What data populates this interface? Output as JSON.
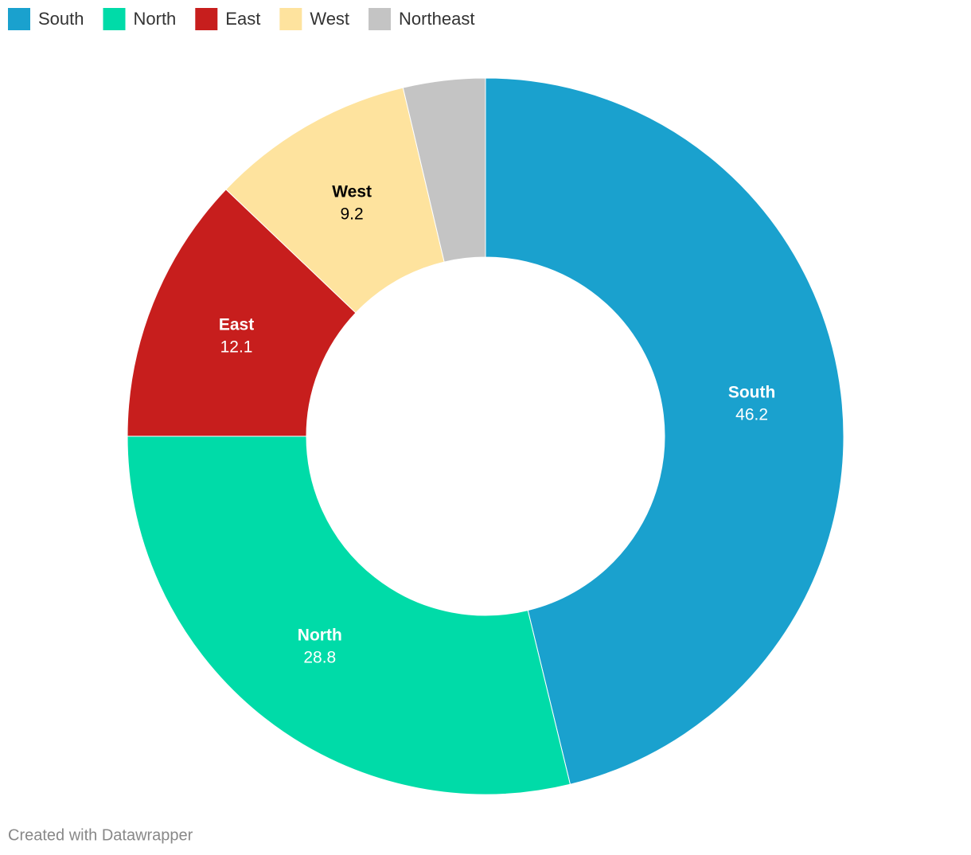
{
  "chart_data": {
    "type": "donut",
    "categories": [
      "South",
      "North",
      "East",
      "West",
      "Northeast"
    ],
    "values": [
      46.2,
      28.8,
      12.1,
      9.2,
      3.7
    ],
    "colors": [
      "#1aa1ce",
      "#00dba8",
      "#c71e1d",
      "#fee39e",
      "#c4c4c4"
    ],
    "legend": "top-left",
    "credit": "Created with Datawrapper"
  }
}
